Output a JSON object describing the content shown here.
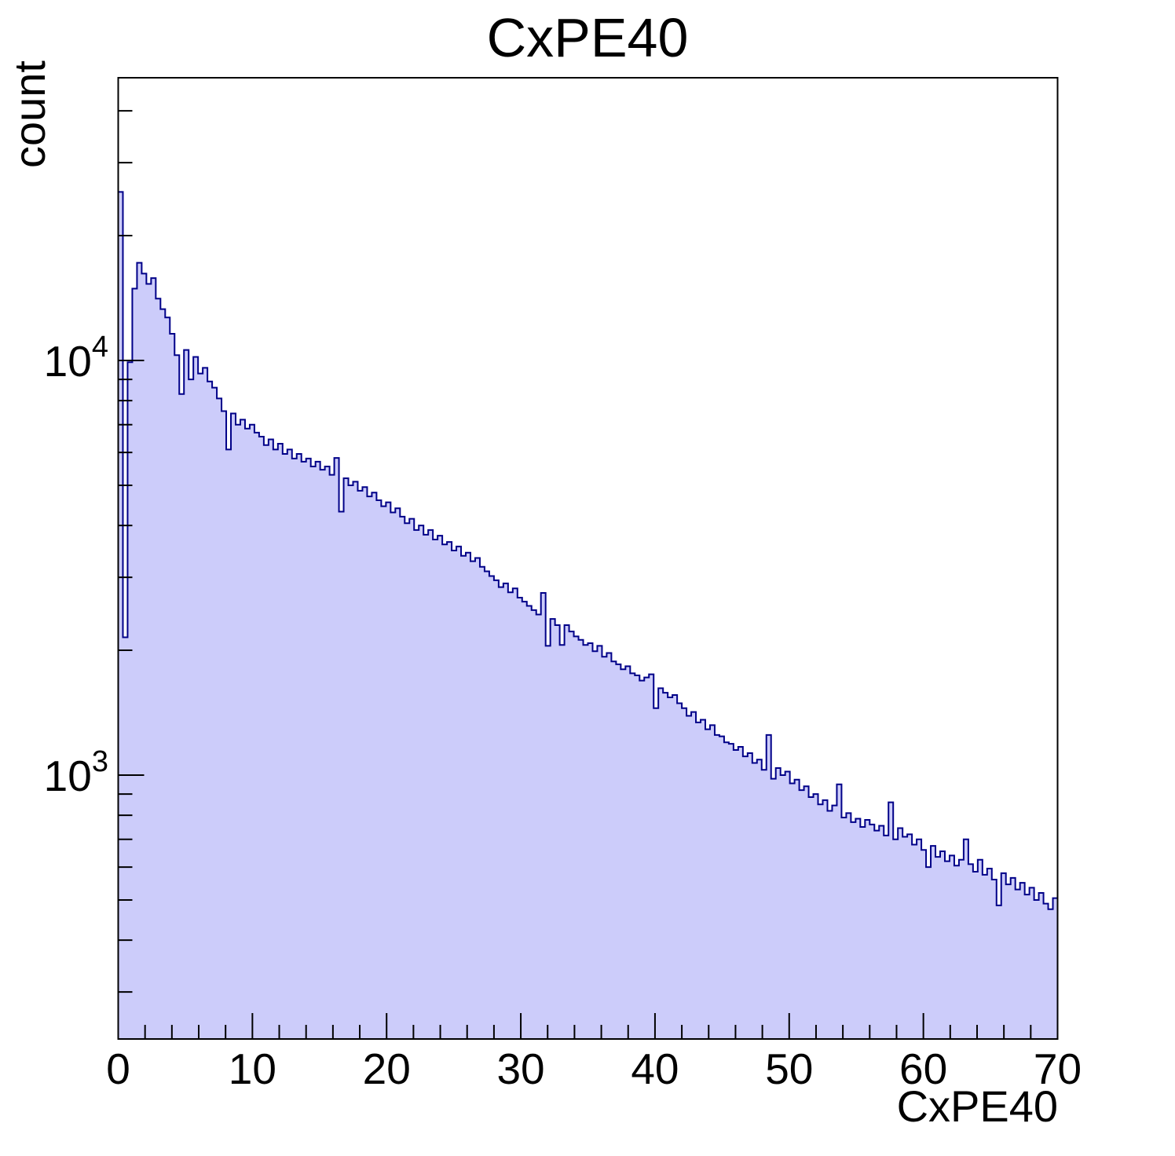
{
  "chart": {
    "title": "CxPE40",
    "xlabel": "CxPE40",
    "ylabel": "count"
  },
  "chart_data": {
    "type": "bar",
    "subtype": "step-histogram-log-y",
    "title": "CxPE40",
    "xlabel": "CxPE40",
    "ylabel": "count",
    "xlim": [
      0,
      70
    ],
    "ylim": [
      231,
      48000
    ],
    "yscale": "log",
    "grid": false,
    "legend": null,
    "line_color": "#000088",
    "fill_color": "#ccccfa",
    "bin_start": 0,
    "bin_width": 0.35,
    "x_tick_labels": [
      "0",
      "10",
      "20",
      "30",
      "40",
      "50",
      "60",
      "70"
    ],
    "x_tick_values": [
      0,
      10,
      20,
      30,
      40,
      50,
      60,
      70
    ],
    "x_minor_step": 2,
    "y_tick_labels": [
      {
        "base": "10",
        "exp": "3",
        "value": 1000
      },
      {
        "base": "10",
        "exp": "4",
        "value": 10000
      }
    ],
    "y_minor_values": [
      300,
      400,
      500,
      600,
      700,
      800,
      900,
      2000,
      3000,
      4000,
      5000,
      6000,
      7000,
      8000,
      9000,
      20000,
      30000,
      40000
    ],
    "values": [
      25500,
      2150,
      9900,
      14900,
      17200,
      16200,
      15300,
      15800,
      14100,
      13300,
      12700,
      11600,
      10300,
      8300,
      10600,
      9000,
      10200,
      9300,
      9600,
      8900,
      8600,
      8100,
      7550,
      6100,
      7450,
      7000,
      7200,
      6850,
      7000,
      6700,
      6550,
      6250,
      6450,
      6100,
      6300,
      5950,
      6100,
      5800,
      5950,
      5700,
      5800,
      5550,
      5700,
      5450,
      5550,
      5300,
      5820,
      4320,
      5200,
      5000,
      5100,
      4850,
      4950,
      4700,
      4800,
      4600,
      4450,
      4550,
      4300,
      4400,
      4200,
      4050,
      4150,
      3900,
      4000,
      3800,
      3900,
      3700,
      3780,
      3600,
      3650,
      3480,
      3560,
      3380,
      3440,
      3280,
      3340,
      3180,
      3100,
      3020,
      2950,
      2840,
      2900,
      2760,
      2820,
      2680,
      2620,
      2560,
      2500,
      2440,
      2750,
      2050,
      2380,
      2300,
      2060,
      2300,
      2220,
      2160,
      2120,
      2060,
      2080,
      1990,
      2050,
      1930,
      1970,
      1880,
      1850,
      1800,
      1830,
      1760,
      1740,
      1690,
      1720,
      1750,
      1450,
      1620,
      1580,
      1540,
      1560,
      1490,
      1450,
      1390,
      1420,
      1340,
      1360,
      1290,
      1320,
      1250,
      1240,
      1200,
      1190,
      1150,
      1170,
      1110,
      1130,
      1070,
      1090,
      1030,
      1250,
      980,
      1040,
      1000,
      1020,
      955,
      975,
      920,
      940,
      885,
      900,
      850,
      870,
      820,
      845,
      950,
      790,
      810,
      770,
      785,
      750,
      780,
      760,
      735,
      755,
      715,
      860,
      700,
      745,
      710,
      720,
      680,
      700,
      660,
      600,
      675,
      635,
      655,
      620,
      640,
      605,
      625,
      700,
      610,
      585,
      625,
      575,
      595,
      560,
      485,
      580,
      545,
      565,
      530,
      550,
      515,
      535,
      500,
      520,
      490,
      475,
      505
    ]
  }
}
